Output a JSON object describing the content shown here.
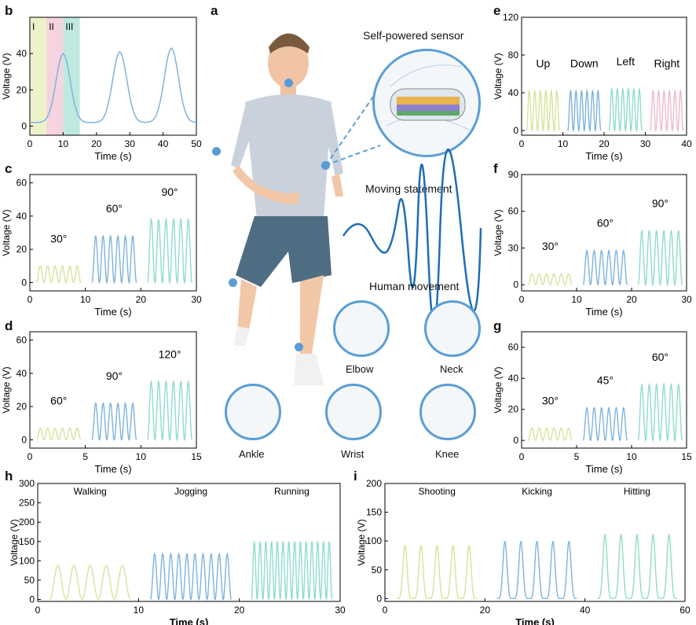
{
  "panel_labels": {
    "a": "a",
    "b": "b",
    "c": "c",
    "d": "d",
    "e": "e",
    "f": "f",
    "g": "g",
    "h": "h",
    "i": "i"
  },
  "center": {
    "sensor": "Self-powered sensor",
    "moving": "Moving statement",
    "movement": "Human movement",
    "parts": [
      "Elbow",
      "Neck",
      "Ankle",
      "Wrist",
      "Knee"
    ]
  },
  "colors": {
    "yellow": "#d7e39a",
    "pink": "#eeb9d0",
    "blue": "#7fb3de",
    "teal": "#90dccb",
    "skin": "#f2c7a8",
    "shirt": "#c9d2dc",
    "shorts": "#4f6d82"
  },
  "chart_data": [
    {
      "id": "b",
      "type": "line",
      "xlabel": "Time (s)",
      "ylabel": "Voltage (V)",
      "xlim": [
        0,
        50
      ],
      "ylim": [
        -5,
        60
      ],
      "xticks": [
        0,
        10,
        20,
        30,
        40,
        50
      ],
      "yticks": [
        0,
        20,
        40
      ],
      "regions": [
        "I",
        "II",
        "III"
      ],
      "series": [
        {
          "x": [
            0,
            5,
            10,
            15,
            20,
            27,
            35,
            42,
            50
          ],
          "y": [
            2,
            5,
            40,
            2,
            2,
            41,
            3,
            43,
            2
          ]
        }
      ]
    },
    {
      "id": "c",
      "type": "line",
      "xlabel": "Time (s)",
      "ylabel": "Voltage (V)",
      "xlim": [
        0,
        30
      ],
      "ylim": [
        -5,
        65
      ],
      "xticks": [
        0,
        10,
        20,
        30
      ],
      "yticks": [
        0,
        20,
        40,
        60
      ],
      "annotations": [
        "30°",
        "60°",
        "90°"
      ],
      "series": [
        {
          "name": "30°",
          "peak": 10
        },
        {
          "name": "60°",
          "peak": 28
        },
        {
          "name": "90°",
          "peak": 38
        }
      ]
    },
    {
      "id": "d",
      "type": "line",
      "xlabel": "Time (s)",
      "ylabel": "Voltage (V)",
      "xlim": [
        0,
        15
      ],
      "ylim": [
        -5,
        65
      ],
      "xticks": [
        0,
        5,
        10,
        15
      ],
      "yticks": [
        0,
        20,
        40,
        60
      ],
      "annotations": [
        "60°",
        "90°",
        "120°"
      ],
      "series": [
        {
          "name": "60°",
          "peak": 7
        },
        {
          "name": "90°",
          "peak": 22
        },
        {
          "name": "120°",
          "peak": 35
        }
      ]
    },
    {
      "id": "e",
      "type": "line",
      "xlabel": "Time (s)",
      "ylabel": "Voltage (V)",
      "xlim": [
        0,
        40
      ],
      "ylim": [
        -5,
        120
      ],
      "xticks": [
        0,
        10,
        20,
        30,
        40
      ],
      "yticks": [
        0,
        40,
        80,
        120
      ],
      "annotations": [
        "Up",
        "Down",
        "Left",
        "Right"
      ],
      "series": [
        {
          "name": "Up",
          "peak": 42
        },
        {
          "name": "Down",
          "peak": 42
        },
        {
          "name": "Left",
          "peak": 44
        },
        {
          "name": "Right",
          "peak": 42
        }
      ]
    },
    {
      "id": "f",
      "type": "line",
      "xlabel": "Time (s)",
      "ylabel": "Voltage (V)",
      "xlim": [
        0,
        30
      ],
      "ylim": [
        -5,
        90
      ],
      "xticks": [
        0,
        10,
        20,
        30
      ],
      "yticks": [
        0,
        30,
        60,
        90
      ],
      "annotations": [
        "30°",
        "60°",
        "90°"
      ],
      "series": [
        {
          "name": "30°",
          "peak": 9
        },
        {
          "name": "60°",
          "peak": 28
        },
        {
          "name": "90°",
          "peak": 44
        }
      ]
    },
    {
      "id": "g",
      "type": "line",
      "xlabel": "Time (s)",
      "ylabel": "Voltage (V)",
      "xlim": [
        0,
        15
      ],
      "ylim": [
        -5,
        70
      ],
      "xticks": [
        0,
        5,
        10,
        15
      ],
      "yticks": [
        0,
        20,
        40,
        60
      ],
      "annotations": [
        "30°",
        "45°",
        "60°"
      ],
      "series": [
        {
          "name": "30°",
          "peak": 8
        },
        {
          "name": "45°",
          "peak": 21
        },
        {
          "name": "60°",
          "peak": 36
        }
      ]
    },
    {
      "id": "h",
      "type": "line",
      "xlabel": "Time (s)",
      "ylabel": "Voltage (V)",
      "xlim": [
        0,
        30
      ],
      "ylim": [
        -5,
        300
      ],
      "xticks": [
        0,
        10,
        20,
        30
      ],
      "yticks": [
        0,
        50,
        100,
        150,
        200,
        250,
        300
      ],
      "annotations": [
        "Walking",
        "Jogging",
        "Running"
      ],
      "series": [
        {
          "name": "Walking",
          "peak": 88
        },
        {
          "name": "Jogging",
          "peak": 118
        },
        {
          "name": "Running",
          "peak": 150
        }
      ]
    },
    {
      "id": "i",
      "type": "line",
      "xlabel": "Time (s)",
      "ylabel": "Voltage (V)",
      "xlim": [
        0,
        60
      ],
      "ylim": [
        -5,
        200
      ],
      "xticks": [
        0,
        20,
        40,
        60
      ],
      "yticks": [
        0,
        50,
        100,
        150,
        200
      ],
      "annotations": [
        "Shooting",
        "Kicking",
        "Hitting"
      ],
      "series": [
        {
          "name": "Shooting",
          "peak": 93
        },
        {
          "name": "Kicking",
          "peak": 100
        },
        {
          "name": "Hitting",
          "peak": 112
        }
      ]
    }
  ]
}
